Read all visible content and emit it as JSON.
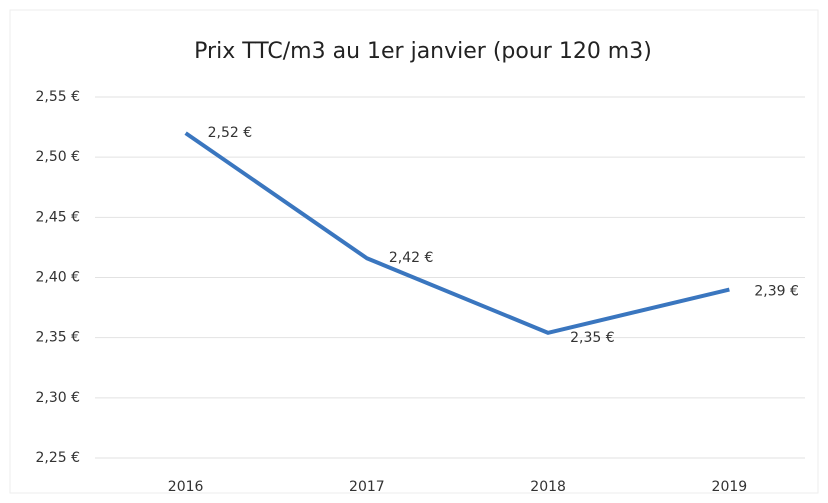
{
  "chart_data": {
    "type": "line",
    "title": "Prix TTC/m3 au 1er janvier (pour 120 m3)",
    "categories": [
      "2016",
      "2017",
      "2018",
      "2019"
    ],
    "series": [
      {
        "name": "Prix TTC/m3",
        "color": "#3a76bf",
        "values": [
          2.52,
          2.416,
          2.354,
          2.39
        ],
        "value_labels": [
          "2,52 €",
          "2,42 €",
          "2,35 €",
          "2,39 €"
        ]
      }
    ],
    "ylim": [
      2.25,
      2.55
    ],
    "yticks": [
      {
        "value": 2.25,
        "label": "2,25 €"
      },
      {
        "value": 2.3,
        "label": "2,30 €"
      },
      {
        "value": 2.35,
        "label": "2,35 €"
      },
      {
        "value": 2.4,
        "label": "2,40 €"
      },
      {
        "value": 2.45,
        "label": "2,45 €"
      },
      {
        "value": 2.5,
        "label": "2,50 €"
      },
      {
        "value": 2.55,
        "label": "2,55 €"
      }
    ],
    "grid": true
  }
}
